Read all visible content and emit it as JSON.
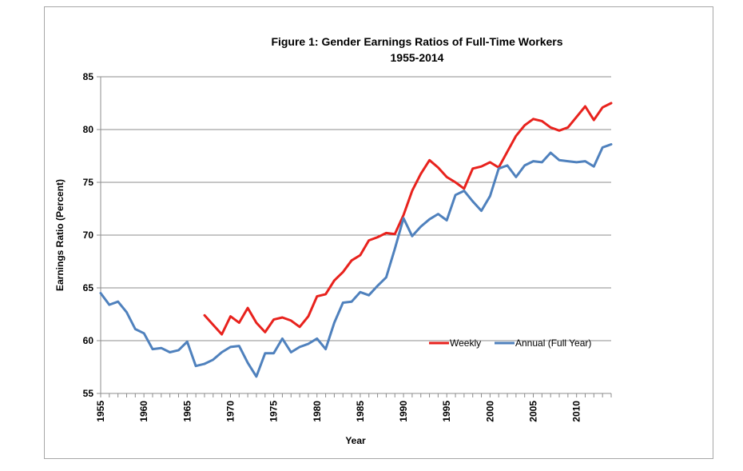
{
  "chart_data": {
    "type": "line",
    "title": "Figure 1:  Gender Earnings Ratios of Full-Time Workers",
    "subtitle": "1955-2014",
    "xlabel": "Year",
    "ylabel": "Earnings Ratio (Percent)",
    "xlim": [
      1955,
      2014
    ],
    "ylim": [
      55,
      85
    ],
    "y_ticks": [
      "55",
      "60",
      "65",
      "70",
      "75",
      "80",
      "85"
    ],
    "x_ticks": [
      "1955",
      "1960",
      "1965",
      "1970",
      "1975",
      "1980",
      "1985",
      "1990",
      "1995",
      "2000",
      "2005",
      "2010"
    ],
    "grid": "horizontal",
    "legend_placement": "right",
    "series": [
      {
        "name": "Weekly",
        "color": "#e8221d",
        "x": [
          1967,
          1968,
          1969,
          1970,
          1971,
          1972,
          1973,
          1974,
          1975,
          1976,
          1977,
          1978,
          1979,
          1980,
          1981,
          1982,
          1983,
          1984,
          1985,
          1986,
          1987,
          1988,
          1989,
          1990,
          1991,
          1992,
          1993,
          1994,
          1995,
          1996,
          1997,
          1998,
          1999,
          2000,
          2001,
          2002,
          2003,
          2004,
          2005,
          2006,
          2007,
          2008,
          2009,
          2010,
          2011,
          2012,
          2013,
          2014
        ],
        "values": [
          62.4,
          61.5,
          60.6,
          62.3,
          61.7,
          63.1,
          61.7,
          60.8,
          62.0,
          62.2,
          61.9,
          61.3,
          62.3,
          64.2,
          64.4,
          65.7,
          66.5,
          67.6,
          68.1,
          69.5,
          69.8,
          70.2,
          70.1,
          71.9,
          74.2,
          75.8,
          77.1,
          76.4,
          75.5,
          75.0,
          74.4,
          76.3,
          76.5,
          76.9,
          76.4,
          77.9,
          79.4,
          80.4,
          81.0,
          80.8,
          80.2,
          79.9,
          80.2,
          81.2,
          82.2,
          80.9,
          82.1,
          82.5
        ]
      },
      {
        "name": "Annual (Full Year)",
        "color": "#4f81bd",
        "x": [
          1955,
          1956,
          1957,
          1958,
          1959,
          1960,
          1961,
          1962,
          1963,
          1964,
          1965,
          1966,
          1967,
          1968,
          1969,
          1970,
          1971,
          1972,
          1973,
          1974,
          1975,
          1976,
          1977,
          1978,
          1979,
          1980,
          1981,
          1982,
          1983,
          1984,
          1985,
          1986,
          1987,
          1988,
          1989,
          1990,
          1991,
          1992,
          1993,
          1994,
          1995,
          1996,
          1997,
          1998,
          1999,
          2000,
          2001,
          2002,
          2003,
          2004,
          2005,
          2006,
          2007,
          2008,
          2009,
          2010,
          2011,
          2012,
          2013,
          2014
        ],
        "values": [
          64.5,
          63.4,
          63.7,
          62.7,
          61.1,
          60.7,
          59.2,
          59.3,
          58.9,
          59.1,
          59.9,
          57.6,
          57.8,
          58.2,
          58.9,
          59.4,
          59.5,
          57.9,
          56.6,
          58.8,
          58.8,
          60.2,
          58.9,
          59.4,
          59.7,
          60.2,
          59.2,
          61.7,
          63.6,
          63.7,
          64.6,
          64.3,
          65.2,
          66.0,
          68.7,
          71.6,
          69.9,
          70.8,
          71.5,
          72.0,
          71.4,
          73.8,
          74.2,
          73.2,
          72.3,
          73.7,
          76.3,
          76.6,
          75.5,
          76.6,
          77.0,
          76.9,
          77.8,
          77.1,
          77.0,
          76.9,
          77.0,
          76.5,
          78.3,
          78.6
        ]
      }
    ]
  }
}
